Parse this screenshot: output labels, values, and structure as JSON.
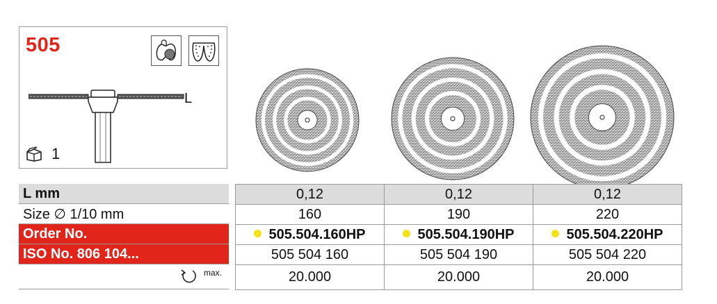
{
  "model_number": "505",
  "side_view": {
    "length_label": "L"
  },
  "pack": {
    "quantity": "1"
  },
  "icons": [
    "tooth-crown-icon",
    "dentures-icon",
    "package-icon",
    "rotation-icon"
  ],
  "accent_color": "#e1251b",
  "dot_color": "#f3e11a",
  "table": {
    "row_labels": {
      "l_mm": "L mm",
      "size": "Size ∅ 1/10 mm",
      "order": "Order No.",
      "iso": "ISO No. 806 104...",
      "max": "max."
    },
    "columns": [
      {
        "l": "0,12",
        "size": "160",
        "order": "505.504.160HP",
        "iso": "505 504 160",
        "rpm": "20.000"
      },
      {
        "l": "0,12",
        "size": "190",
        "order": "505.504.190HP",
        "iso": "505 504 190",
        "rpm": "20.000"
      },
      {
        "l": "0,12",
        "size": "220",
        "order": "505.504.220HP",
        "iso": "505 504 220",
        "rpm": "20.000"
      }
    ]
  }
}
